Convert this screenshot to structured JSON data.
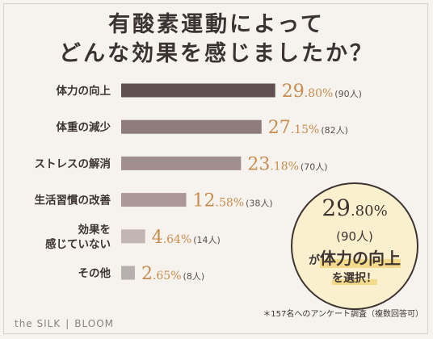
{
  "title": {
    "line1": "有酸素運動によって",
    "line2": "どんな効果を感じましたか？"
  },
  "chart_data": {
    "type": "bar",
    "orientation": "horizontal",
    "xlim": [
      0,
      100
    ],
    "categories": [
      {
        "label_lines": [
          "体力の向上"
        ],
        "value": 29.8,
        "pct_int": "29",
        "pct_dec": ".80%",
        "count": "(90人)",
        "color": "#5f4f4e"
      },
      {
        "label_lines": [
          "体重の減少"
        ],
        "value": 27.15,
        "pct_int": "27",
        "pct_dec": ".15%",
        "count": "(82人)",
        "color": "#8d7c7b"
      },
      {
        "label_lines": [
          "ストレスの解消"
        ],
        "value": 23.18,
        "pct_int": "23",
        "pct_dec": ".18%",
        "count": "(70人)",
        "color": "#a08f8d"
      },
      {
        "label_lines": [
          "生活習慣の改善"
        ],
        "value": 12.58,
        "pct_int": "12",
        "pct_dec": ".58%",
        "count": "(38人)",
        "color": "#ab9897"
      },
      {
        "label_lines": [
          "効果を",
          "感じていない"
        ],
        "value": 4.64,
        "pct_int": "4",
        "pct_dec": ".64%",
        "count": "(14人)",
        "color": "#c2b5b3"
      },
      {
        "label_lines": [
          "その他"
        ],
        "value": 2.65,
        "pct_int": "2",
        "pct_dec": ".65%",
        "count": "(8人)",
        "color": "#b7b0ae"
      }
    ]
  },
  "badge": {
    "pct_int": "29",
    "pct_dec": ".80%",
    "count": "(90人)",
    "ga": "が",
    "label": "体力の向上",
    "select": "を選択！"
  },
  "footnote": "＊157名へのアンケート調査（複数回答可）",
  "brand": {
    "left": "the SILK",
    "sep": "|",
    "right": "BLOOM"
  },
  "colors": {
    "accent": "#c88c4e",
    "badge_bg": "#fbf0cd",
    "highlight": "#f4d98a"
  }
}
